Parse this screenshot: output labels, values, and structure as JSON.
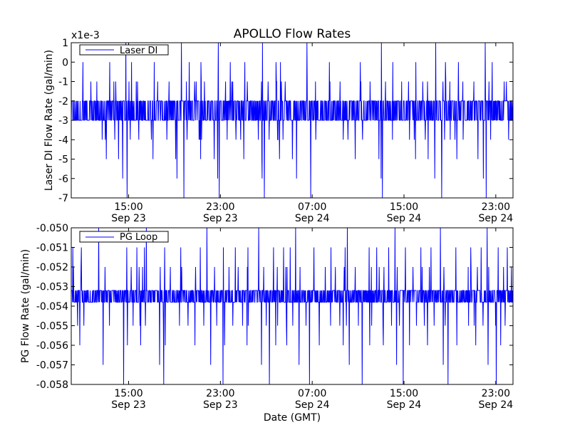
{
  "chart_data": [
    {
      "type": "line",
      "title": "APOLLO Flow Rates",
      "offset_label": "x1e-3",
      "ylabel": "Laser DI Flow Rate (gal/min)",
      "xlabel": "",
      "ylim": [
        -7,
        1
      ],
      "yticks": [
        "1",
        "0",
        "-1",
        "-2",
        "-3",
        "-4",
        "-5",
        "-6",
        "-7"
      ],
      "xlim": [
        "2014-09-23 10:00",
        "2014-09-25 00:30"
      ],
      "xtick_values": [
        "2014-09-23 15:00",
        "2014-09-23 23:00",
        "2014-09-24 07:00",
        "2014-09-24 15:00",
        "2014-09-24 23:00"
      ],
      "xticks": [
        {
          "time": "15:00",
          "date": "Sep 23"
        },
        {
          "time": "23:00",
          "date": "Sep 23"
        },
        {
          "time": "07:00",
          "date": "Sep 24"
        },
        {
          "time": "15:00",
          "date": "Sep 24"
        },
        {
          "time": "23:00",
          "date": "Sep 24"
        }
      ],
      "legend": {
        "label": "Laser DI",
        "position": "upper-left"
      },
      "color": "#0000ff",
      "grid": false,
      "series": [
        {
          "name": "Laser DI",
          "band": [
            -3.0,
            -2.0
          ],
          "spike_levels": [
            0,
            -1,
            -1,
            -4,
            -4,
            -5,
            0,
            -1,
            -4,
            -1,
            -5,
            -6,
            1,
            -7,
            -1,
            -4
          ],
          "min": -7,
          "max": 1
        }
      ]
    },
    {
      "type": "line",
      "title": "",
      "ylabel": "PG Flow Rate (gal/min)",
      "xlabel": "Date (GMT)",
      "ylim": [
        -0.058,
        -0.05
      ],
      "yticks": [
        "-0.050",
        "-0.051",
        "-0.052",
        "-0.053",
        "-0.054",
        "-0.055",
        "-0.056",
        "-0.057",
        "-0.058"
      ],
      "xlim": [
        "2014-09-23 10:00",
        "2014-09-25 00:30"
      ],
      "xtick_values": [
        "2014-09-23 15:00",
        "2014-09-23 23:00",
        "2014-09-24 07:00",
        "2014-09-24 15:00",
        "2014-09-24 23:00"
      ],
      "xticks": [
        {
          "time": "15:00",
          "date": "Sep 23"
        },
        {
          "time": "23:00",
          "date": "Sep 23"
        },
        {
          "time": "07:00",
          "date": "Sep 24"
        },
        {
          "time": "15:00",
          "date": "Sep 24"
        },
        {
          "time": "23:00",
          "date": "Sep 24"
        }
      ],
      "legend": {
        "label": "PG Loop",
        "position": "upper-left"
      },
      "color": "#0000ff",
      "grid": false,
      "series": [
        {
          "name": "PG Loop",
          "band": [
            -0.0538,
            -0.0532
          ],
          "spike_levels": [
            -0.051,
            -0.052,
            -0.055,
            -0.056,
            -0.052,
            -0.051,
            -0.055,
            -0.05,
            -0.057,
            -0.052,
            -0.055,
            -0.058,
            -0.051,
            -0.056,
            -0.052,
            -0.055
          ],
          "min": -0.058,
          "max": -0.05
        }
      ]
    }
  ]
}
